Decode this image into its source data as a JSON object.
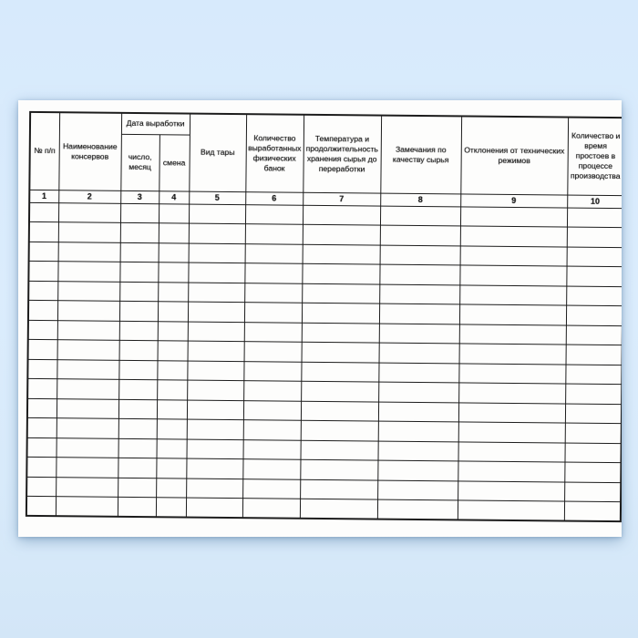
{
  "colors": {
    "background": "#d9ebfc",
    "page": "#fdfdfc",
    "grid_line": "#1c1c1c",
    "text": "#151515"
  },
  "table": {
    "headers": {
      "no": "№ п/п",
      "name": "Наименование консервов",
      "date_group": "Дата выработки",
      "date": "число,\nмесяц",
      "shift": "смена",
      "container": "Вид тары",
      "quantity": "Количество выработанных физических банок",
      "temperature": "Температура и продолжительность хранения сырья до переработки",
      "quality": "Замечания по качеству сырья",
      "deviations": "Отклонения от технических режимов",
      "downtime": "Количество и время простоев в процессе производства"
    },
    "column_numbers": [
      "1",
      "2",
      "3",
      "4",
      "5",
      "6",
      "7",
      "8",
      "9",
      "10"
    ],
    "empty_rows": 16,
    "cells_per_row": 10
  }
}
